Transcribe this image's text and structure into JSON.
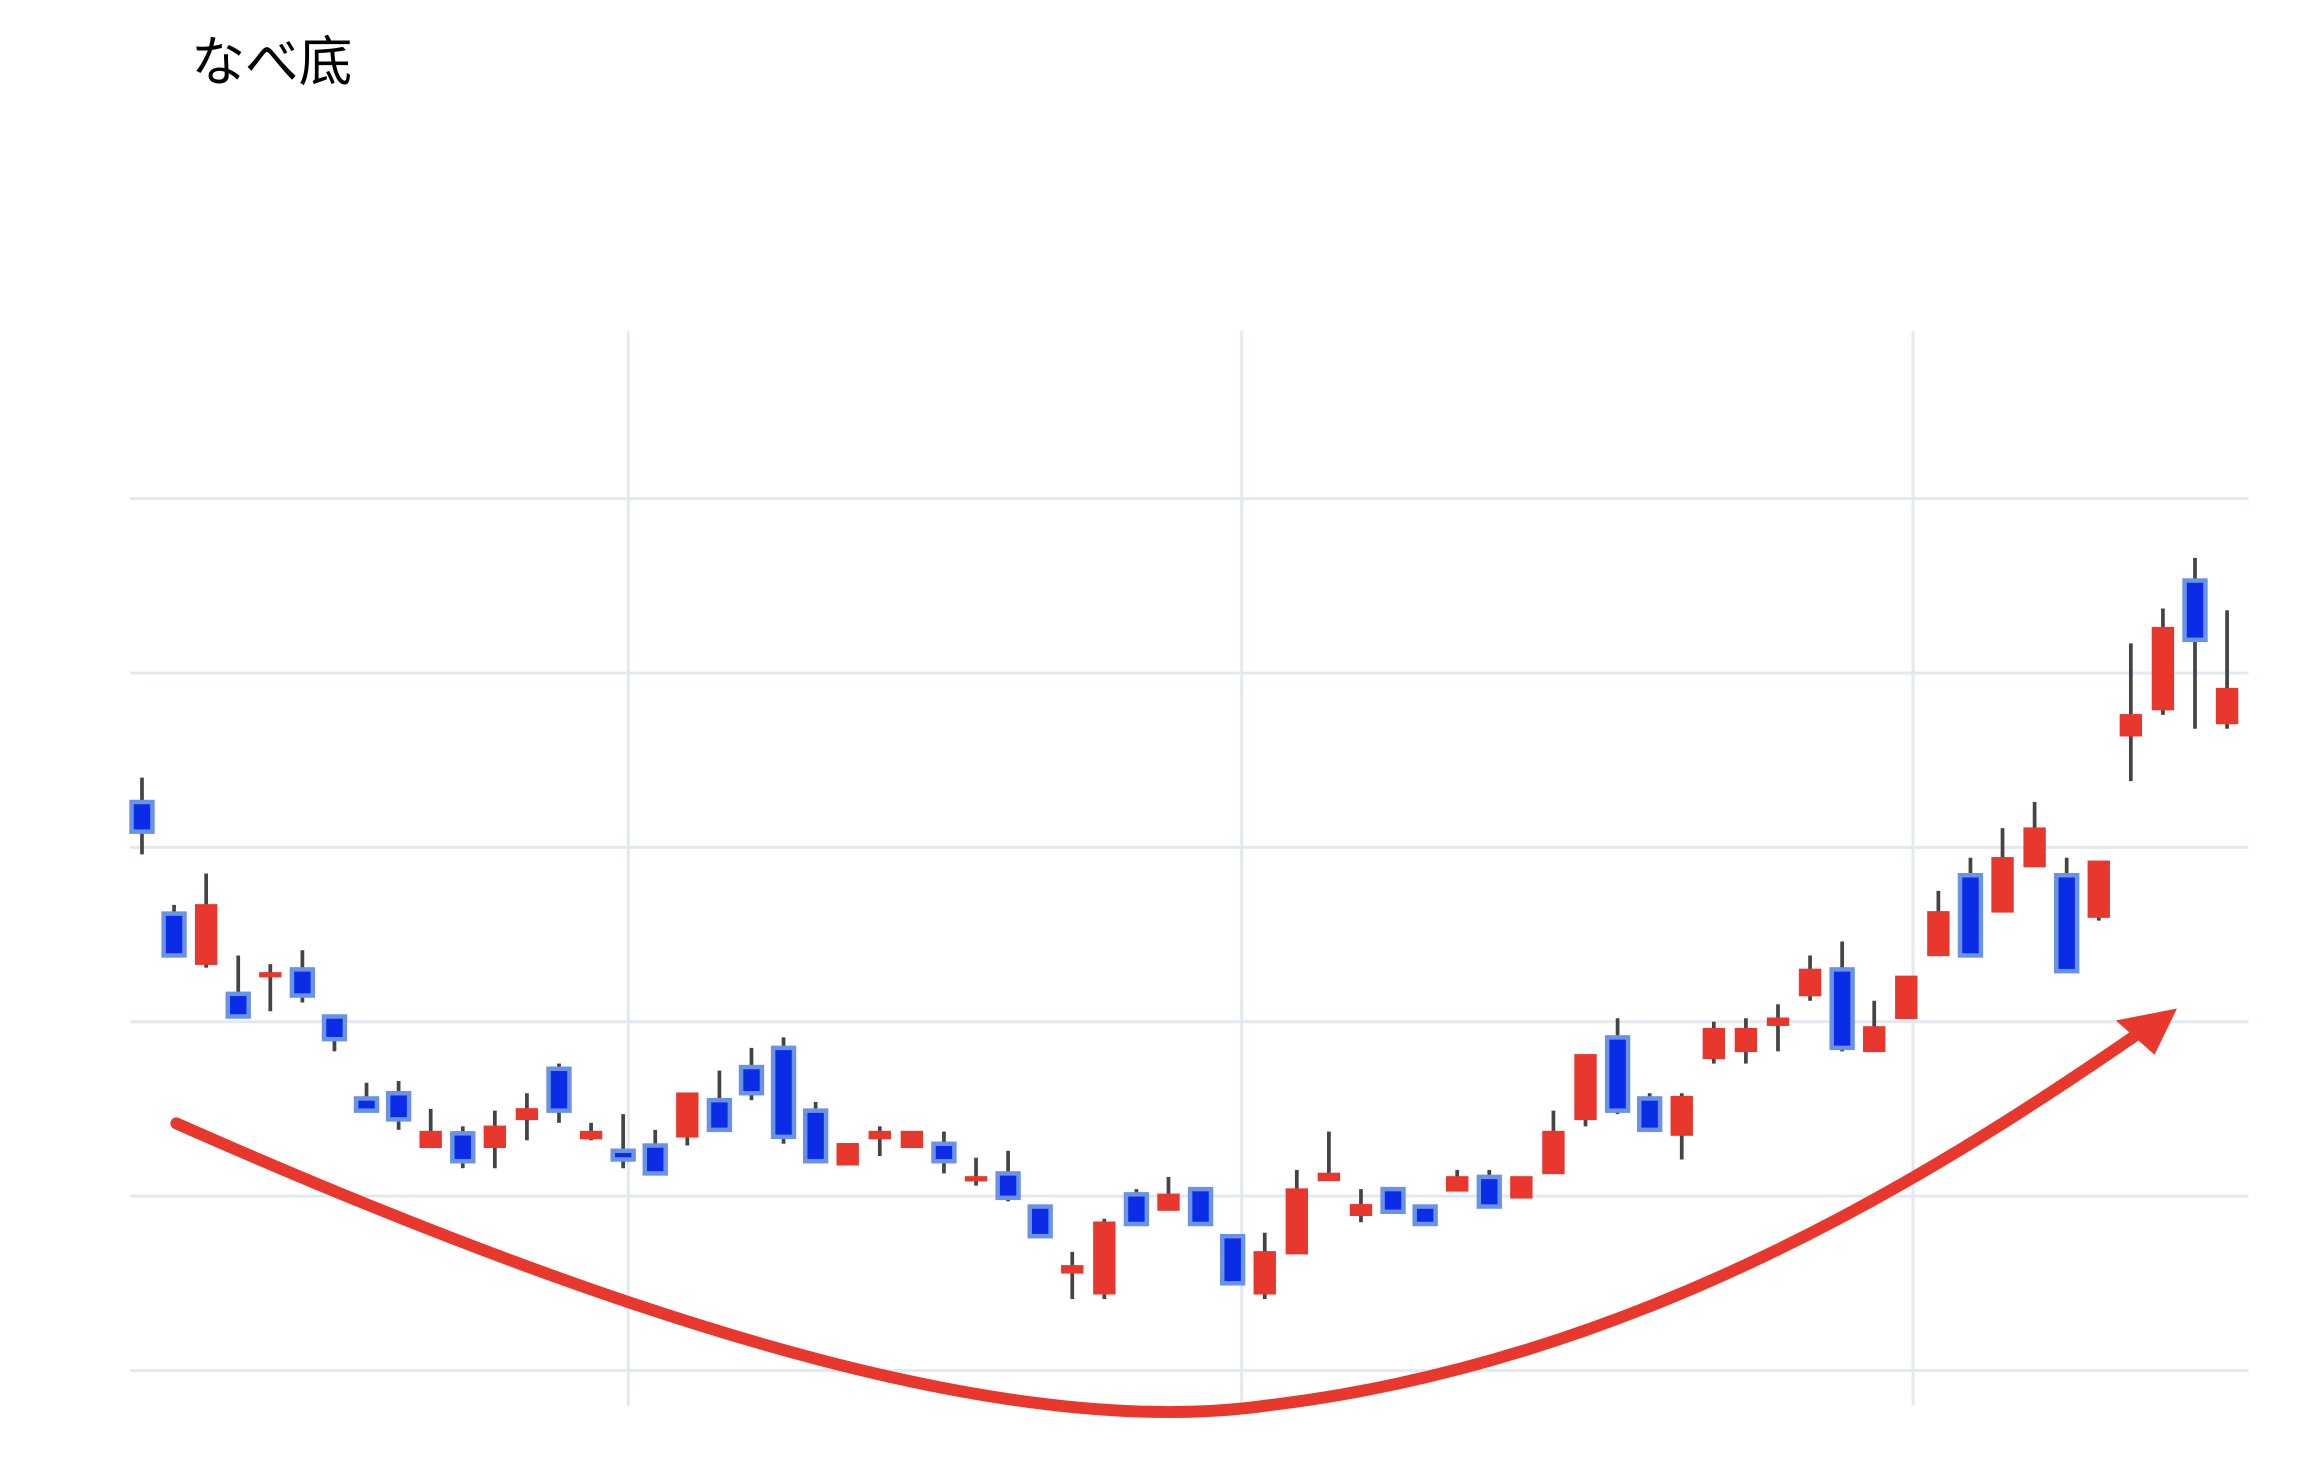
{
  "chart_data": {
    "type": "candlestick",
    "title": "なべ底",
    "x": [
      0,
      1,
      2,
      3,
      4,
      5,
      6,
      7,
      8,
      9,
      10,
      11,
      12,
      13,
      14,
      15,
      16,
      17,
      18,
      19,
      20,
      21,
      22,
      23,
      24,
      25,
      26,
      27,
      28,
      29,
      30,
      31,
      32,
      33,
      34,
      35,
      36,
      37,
      38,
      39,
      40,
      41,
      42,
      43,
      44,
      45,
      46,
      47,
      48,
      49,
      50,
      51,
      52,
      53,
      54,
      55,
      56,
      57,
      58,
      59,
      60,
      61,
      62,
      63,
      64,
      65
    ],
    "open": [
      132.6,
      126.2,
      123.3,
      121.6,
      122.6,
      123.0,
      120.3,
      115.6,
      115.9,
      112.8,
      113.6,
      112.8,
      114.4,
      117.3,
      113.3,
      112.6,
      112.9,
      113.4,
      115.5,
      117.4,
      118.5,
      114.9,
      111.8,
      113.3,
      112.8,
      113.0,
      110.9,
      111.3,
      109.4,
      105.6,
      104.4,
      110.1,
      109.2,
      110.4,
      107.7,
      104.4,
      106.7,
      110.9,
      108.9,
      110.4,
      109.4,
      110.3,
      111.1,
      109.9,
      111.3,
      114.4,
      119.1,
      115.6,
      113.5,
      117.9,
      118.3,
      119.8,
      121.5,
      123.0,
      118.3,
      120.2,
      123.8,
      128.4,
      126.3,
      128.9,
      128.4,
      126.0,
      136.4,
      137.9,
      145.3,
      137.1
    ],
    "high": [
      134.0,
      126.7,
      128.5,
      123.8,
      123.3,
      124.1,
      120.3,
      116.5,
      116.6,
      115.0,
      114.0,
      114.9,
      115.9,
      117.6,
      114.2,
      114.7,
      113.8,
      115.9,
      117.2,
      118.5,
      119.1,
      115.4,
      113.0,
      114.0,
      113.7,
      113.7,
      112.2,
      112.6,
      109.4,
      106.8,
      108.7,
      110.4,
      111.1,
      110.4,
      107.7,
      107.9,
      111.5,
      113.7,
      110.4,
      110.4,
      109.4,
      111.5,
      111.5,
      111.1,
      114.9,
      118.1,
      120.2,
      115.9,
      115.9,
      120.0,
      120.2,
      121.0,
      123.8,
      124.6,
      121.2,
      122.6,
      127.5,
      129.4,
      131.1,
      132.6,
      129.4,
      129.2,
      141.7,
      143.7,
      146.6,
      143.6
    ],
    "low": [
      129.6,
      123.7,
      123.1,
      120.2,
      120.6,
      121.1,
      118.3,
      114.9,
      113.8,
      112.8,
      111.6,
      111.6,
      113.2,
      114.2,
      113.2,
      111.6,
      111.3,
      112.9,
      113.8,
      115.5,
      113.0,
      112.0,
      111.8,
      112.3,
      112.8,
      111.3,
      110.6,
      109.7,
      107.7,
      104.1,
      104.1,
      108.4,
      109.2,
      108.4,
      105.0,
      104.1,
      106.7,
      110.9,
      108.5,
      109.1,
      108.4,
      110.3,
      109.4,
      109.9,
      111.3,
      114.0,
      114.7,
      113.7,
      112.1,
      117.6,
      117.6,
      118.3,
      121.2,
      118.3,
      118.3,
      120.2,
      123.8,
      123.8,
      126.3,
      128.9,
      122.9,
      125.8,
      133.8,
      137.6,
      136.8,
      136.8
    ],
    "close": [
      130.9,
      123.8,
      126.7,
      120.3,
      122.8,
      121.5,
      119.0,
      114.9,
      114.4,
      113.7,
      112.0,
      114.0,
      115.0,
      114.9,
      113.7,
      112.1,
      111.3,
      115.9,
      113.8,
      115.9,
      113.4,
      112.0,
      113.0,
      113.7,
      113.7,
      112.0,
      111.1,
      109.9,
      107.7,
      106.0,
      108.5,
      108.4,
      110.1,
      108.4,
      105.0,
      106.8,
      110.4,
      111.3,
      109.5,
      109.1,
      108.4,
      111.1,
      109.4,
      111.1,
      113.7,
      118.1,
      114.9,
      113.8,
      115.7,
      119.6,
      119.6,
      120.2,
      123.0,
      118.5,
      119.7,
      122.6,
      126.3,
      123.8,
      129.4,
      131.1,
      122.9,
      129.2,
      137.6,
      142.6,
      141.9,
      139.1
    ],
    "increasing_color": "#e8372c",
    "decreasing_color": "#0a2ce6",
    "decreasing_line_color": "#6a93e6",
    "xlim": [
      -0.37,
      65.67
    ],
    "xticks": [
      15.16,
      34.28,
      55.21
    ],
    "ylim": [
      98.0,
      159.6
    ],
    "yticks": [
      100,
      110,
      120,
      130,
      140,
      150
    ],
    "grid": true
  }
}
